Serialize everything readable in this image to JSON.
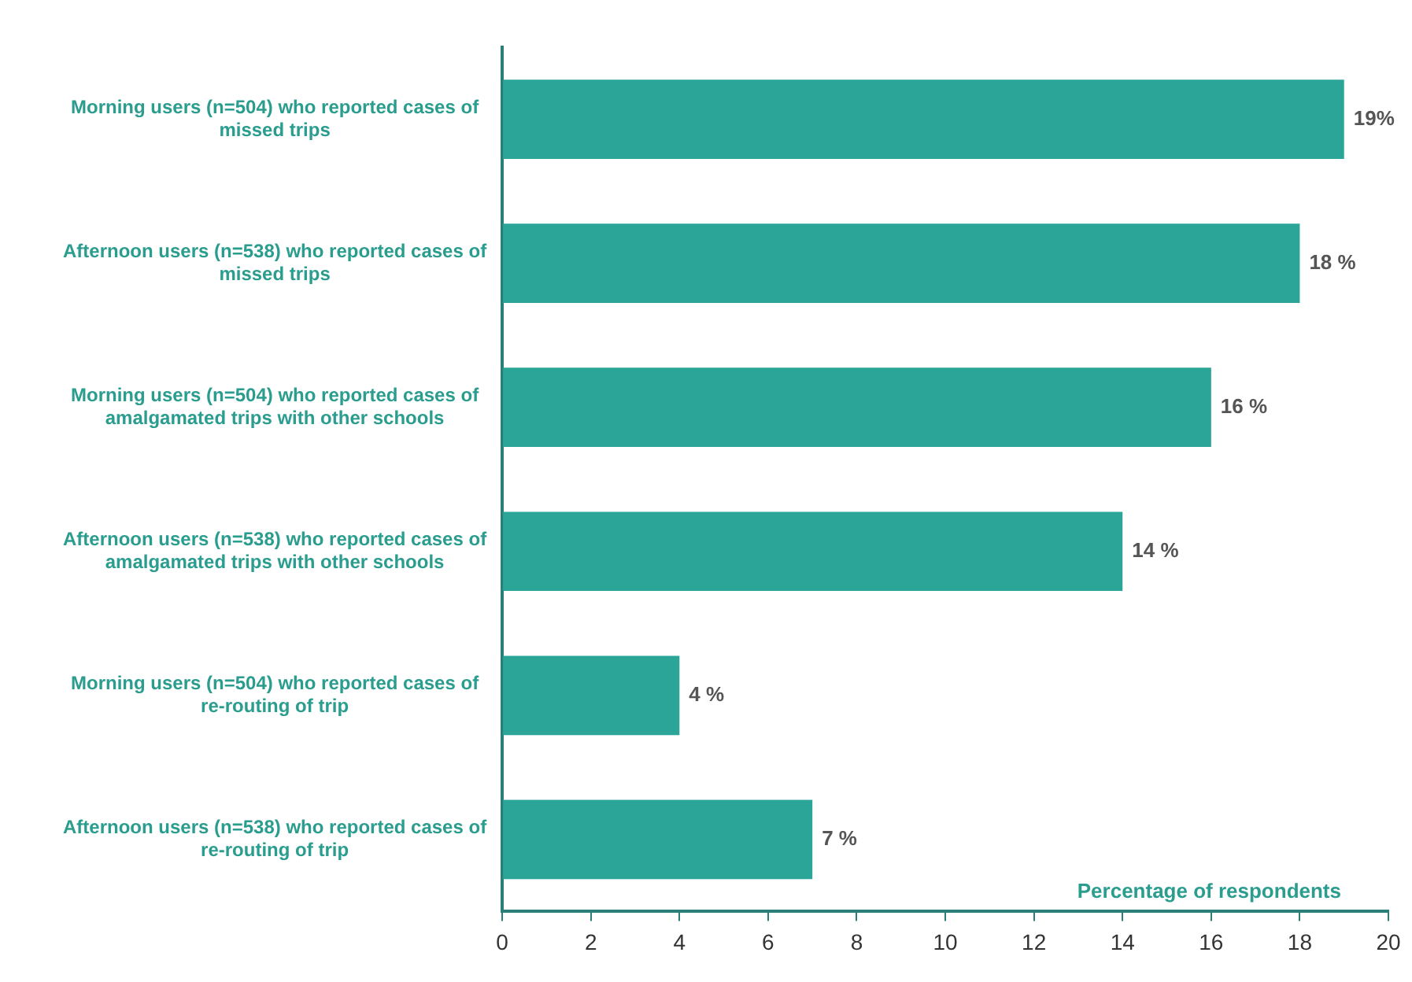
{
  "chart_data": {
    "type": "bar",
    "orientation": "horizontal",
    "xlabel": "Percentage of respondents",
    "categories": [
      "Morning users (n=504) who reported cases of missed trips",
      "Afternoon users (n=538) who reported cases of missed trips",
      "Morning users (n=504) who reported cases of amalgamated trips with other schools",
      "Afternoon users (n=538) who reported cases of amalgamated trips with other schools",
      "Morning users (n=504) who reported cases of re-routing of trip",
      "Afternoon users (n=538) who reported cases of re-routing of trip"
    ],
    "values": [
      19,
      18,
      16,
      14,
      4,
      7
    ],
    "value_labels": [
      "19%",
      "18 %",
      "16 %",
      "14 %",
      "4 %",
      "7 %"
    ],
    "color": "#2aa597",
    "xlim": [
      0,
      20
    ],
    "xticks": [
      0,
      2,
      4,
      6,
      8,
      10,
      12,
      14,
      16,
      18,
      20
    ]
  }
}
